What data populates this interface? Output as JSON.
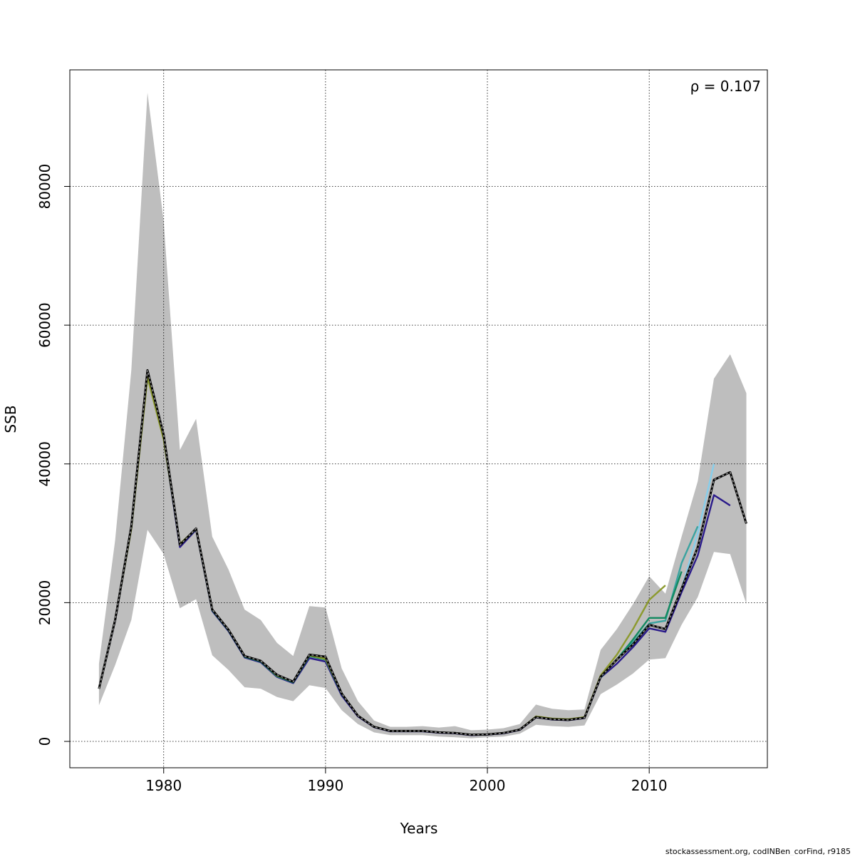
{
  "chart_data": {
    "type": "line",
    "xlabel": "Years",
    "ylabel": "SSB",
    "annotation": "ρ = 0.107",
    "footer": "stockassessment.org, codINBen_corFind, r9185",
    "xlim": [
      1974.2,
      2017.3
    ],
    "ylim": [
      -3800,
      96800
    ],
    "x_ticks": [
      1980,
      1990,
      2000,
      2010
    ],
    "y_ticks": [
      0,
      20000,
      40000,
      60000,
      80000
    ],
    "grid": true,
    "band": {
      "name": "confidence interval",
      "color": "#bebebe",
      "x": [
        1976,
        1977,
        1978,
        1979,
        1980,
        1981,
        1982,
        1983,
        1984,
        1985,
        1986,
        1987,
        1988,
        1989,
        1990,
        1991,
        1992,
        1993,
        1994,
        1995,
        1996,
        1997,
        1998,
        1999,
        2000,
        2001,
        2002,
        2003,
        2004,
        2005,
        2006,
        2007,
        2008,
        2009,
        2010,
        2011,
        2012,
        2013,
        2014,
        2015,
        2016
      ],
      "lower": [
        5200,
        11000,
        17500,
        30500,
        27000,
        19200,
        20500,
        12400,
        10300,
        7800,
        7600,
        6400,
        5800,
        8100,
        7700,
        4500,
        2500,
        1300,
        900,
        900,
        900,
        700,
        600,
        450,
        600,
        700,
        1100,
        2400,
        2200,
        2100,
        2300,
        6800,
        8200,
        9800,
        11800,
        12000,
        16800,
        20800,
        27300,
        27000,
        19800
      ],
      "upper": [
        11200,
        29000,
        53500,
        93500,
        75000,
        42000,
        46500,
        29500,
        24800,
        19000,
        17500,
        14200,
        12300,
        19500,
        19300,
        10500,
        5800,
        3000,
        2100,
        2100,
        2200,
        2000,
        2200,
        1600,
        1700,
        1900,
        2500,
        5300,
        4700,
        4500,
        4600,
        13200,
        16200,
        19800,
        23800,
        21300,
        29500,
        37500,
        52300,
        55800,
        50200
      ]
    },
    "series": [
      {
        "name": "",
        "color": "#000000",
        "dashed": true,
        "x": [
          1976,
          1977,
          1978,
          1979,
          1980,
          1981,
          1982,
          1983,
          1984,
          1985,
          1986,
          1987,
          1988,
          1989,
          1990,
          1991,
          1992,
          1993,
          1994,
          1995,
          1996,
          1997,
          1998,
          1999,
          2000,
          2001,
          2002,
          2003,
          2004,
          2005,
          2006,
          2007,
          2008,
          2009,
          2010,
          2011,
          2012,
          2013,
          2014,
          2015,
          2016
        ],
        "values": [
          7600,
          17500,
          31000,
          53500,
          44200,
          28300,
          30700,
          19000,
          16100,
          12300,
          11600,
          9600,
          8600,
          12500,
          12200,
          6900,
          3700,
          2100,
          1500,
          1500,
          1500,
          1300,
          1200,
          950,
          1000,
          1200,
          1700,
          3500,
          3200,
          3100,
          3400,
          9300,
          11800,
          14000,
          16800,
          16200,
          22000,
          28000,
          37700,
          38800,
          31400
        ]
      },
      {
        "name": "",
        "color": "#2a1a8a",
        "dashed": false,
        "x": [
          1976,
          1977,
          1978,
          1979,
          1980,
          1981,
          1982,
          1983,
          1984,
          1985,
          1986,
          1987,
          1988,
          1989,
          1990,
          1991,
          1992,
          1993,
          1994,
          1995,
          1996,
          1997,
          1998,
          1999,
          2000,
          2001,
          2002,
          2003,
          2004,
          2005,
          2006,
          2007,
          2008,
          2009,
          2010,
          2011,
          2012,
          2013,
          2014,
          2015
        ],
        "values": [
          7600,
          17400,
          30700,
          52800,
          43600,
          28000,
          30500,
          18800,
          15900,
          12100,
          11400,
          9300,
          8400,
          12000,
          11500,
          6600,
          3600,
          2050,
          1450,
          1450,
          1450,
          1250,
          1150,
          900,
          980,
          1150,
          1650,
          3450,
          3150,
          3050,
          3350,
          9200,
          11200,
          13600,
          16300,
          15800,
          21500,
          26800,
          35500,
          34000
        ]
      },
      {
        "name": "",
        "color": "#87ceeb",
        "dashed": false,
        "x": [
          2012,
          2013,
          2014
        ],
        "values": [
          22000,
          30000,
          40000
        ]
      },
      {
        "name": "",
        "color": "#3aa3a0",
        "dashed": false,
        "x": [
          2007,
          2008,
          2009,
          2010,
          2011,
          2012,
          2013
        ],
        "values": [
          9200,
          11800,
          14300,
          17000,
          17400,
          25700,
          31000
        ]
      },
      {
        "name": "",
        "color": "#128a60",
        "dashed": false,
        "x": [
          1976,
          1977,
          1978,
          1979,
          1980,
          1981,
          1982,
          1983,
          1984,
          1985,
          1986,
          1987,
          1988,
          1989,
          1990,
          1991,
          1992,
          1993,
          1994,
          1995,
          1996,
          1997,
          1998,
          1999,
          2000,
          2001,
          2002,
          2003,
          2004,
          2005,
          2006,
          2007,
          2008,
          2009,
          2010,
          2011,
          2012
        ],
        "values": [
          7600,
          17500,
          30800,
          52900,
          43700,
          28300,
          30600,
          18900,
          16000,
          12200,
          11500,
          9400,
          8500,
          12300,
          11800,
          6800,
          3700,
          2100,
          1500,
          1500,
          1500,
          1300,
          1200,
          950,
          1000,
          1200,
          1700,
          3500,
          3200,
          3100,
          3400,
          9300,
          11800,
          14700,
          17800,
          17800,
          24500
        ]
      },
      {
        "name": "",
        "color": "#8c9a2e",
        "dashed": false,
        "x": [
          1976,
          1977,
          1978,
          1979,
          1980,
          1981,
          1982,
          1983,
          1984,
          1985,
          1986,
          1987,
          1988,
          1989,
          1990,
          1991,
          1992,
          1993,
          1994,
          1995,
          1996,
          1997,
          1998,
          1999,
          2000,
          2001,
          2002,
          2003,
          2004,
          2005,
          2006,
          2007,
          2008,
          2009,
          2010,
          2011
        ],
        "values": [
          7600,
          17500,
          30600,
          52500,
          43500,
          28500,
          30600,
          19000,
          16100,
          12300,
          11600,
          9500,
          8600,
          12400,
          11900,
          6900,
          3700,
          2100,
          1500,
          1500,
          1500,
          1300,
          1200,
          950,
          1000,
          1200,
          1700,
          3600,
          3300,
          3200,
          3500,
          9500,
          12500,
          16200,
          20400,
          22500
        ]
      }
    ]
  }
}
